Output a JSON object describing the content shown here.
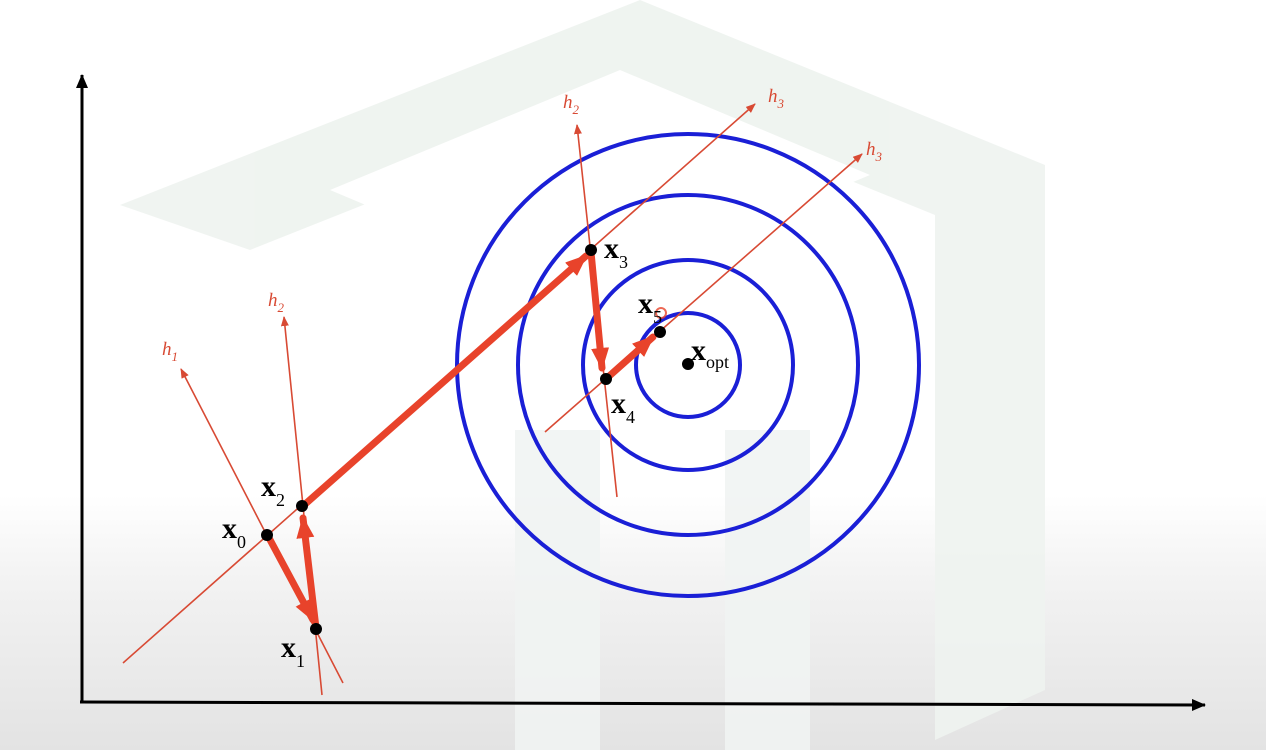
{
  "diagram": {
    "colors": {
      "axis": "#000000",
      "contour": "#1a1fd6",
      "line": "#d84a34",
      "arrow": "#e8432b",
      "watermark": "#eef3ef"
    },
    "line_labels": {
      "h1": {
        "base": "h",
        "sub": "1"
      },
      "h2_left": {
        "base": "h",
        "sub": "2"
      },
      "h2_right": {
        "base": "h",
        "sub": "2"
      },
      "h3_upper": {
        "base": "h",
        "sub": "3"
      },
      "h3_lower": {
        "base": "h",
        "sub": "3"
      }
    },
    "points": {
      "x0": {
        "base": "x",
        "sub": "0"
      },
      "x1": {
        "base": "x",
        "sub": "1"
      },
      "x2": {
        "base": "x",
        "sub": "2"
      },
      "x3": {
        "base": "x",
        "sub": "3"
      },
      "x4": {
        "base": "x",
        "sub": "4"
      },
      "x5": {
        "base": "x",
        "sub": "5"
      },
      "xopt": {
        "base": "x",
        "sub": "opt"
      }
    },
    "contour_count": 4
  }
}
